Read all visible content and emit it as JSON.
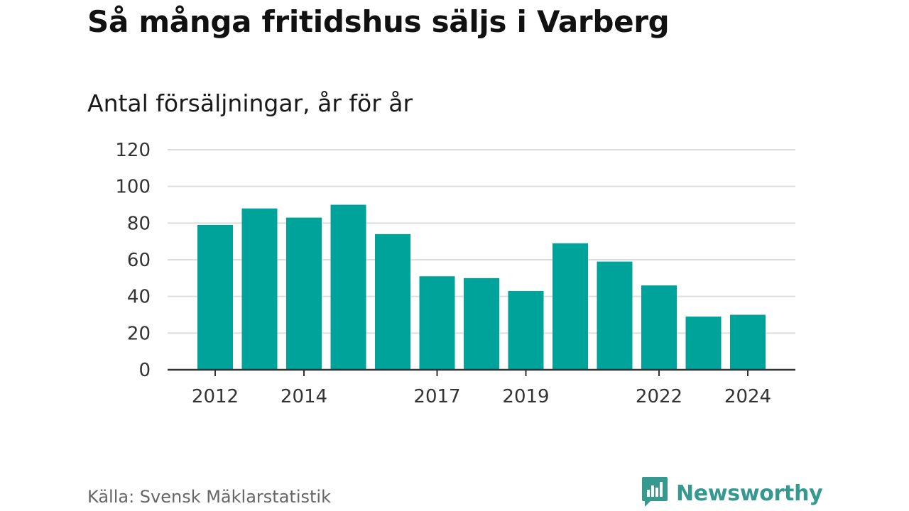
{
  "header": {
    "title": "Så många fritidshus säljs i Varberg",
    "subtitle": "Antal försäljningar, år för år"
  },
  "footer": {
    "source": "Källa: Svensk Mäklarstatistik",
    "brand": "Newsworthy",
    "brand_icon": "bar-chart-speech-bubble-icon"
  },
  "colors": {
    "bar": "#00a39a",
    "brand": "#35998f",
    "grid": "#dddddd",
    "axis": "#333333"
  },
  "chart_data": {
    "type": "bar",
    "categories": [
      "2012",
      "2013",
      "2014",
      "2015",
      "2016",
      "2017",
      "2018",
      "2019",
      "2020",
      "2021",
      "2022",
      "2023",
      "2024"
    ],
    "values": [
      79,
      88,
      83,
      90,
      74,
      51,
      50,
      43,
      69,
      59,
      46,
      29,
      30
    ],
    "x_tick_labels": [
      "2012",
      "2014",
      "2017",
      "2019",
      "2022",
      "2024"
    ],
    "y_ticks": [
      0,
      20,
      40,
      60,
      80,
      100,
      120
    ],
    "ylim": [
      0,
      120
    ],
    "title": "Så många fritidshus säljs i Varberg",
    "subtitle": "Antal försäljningar, år för år",
    "grid": true
  }
}
